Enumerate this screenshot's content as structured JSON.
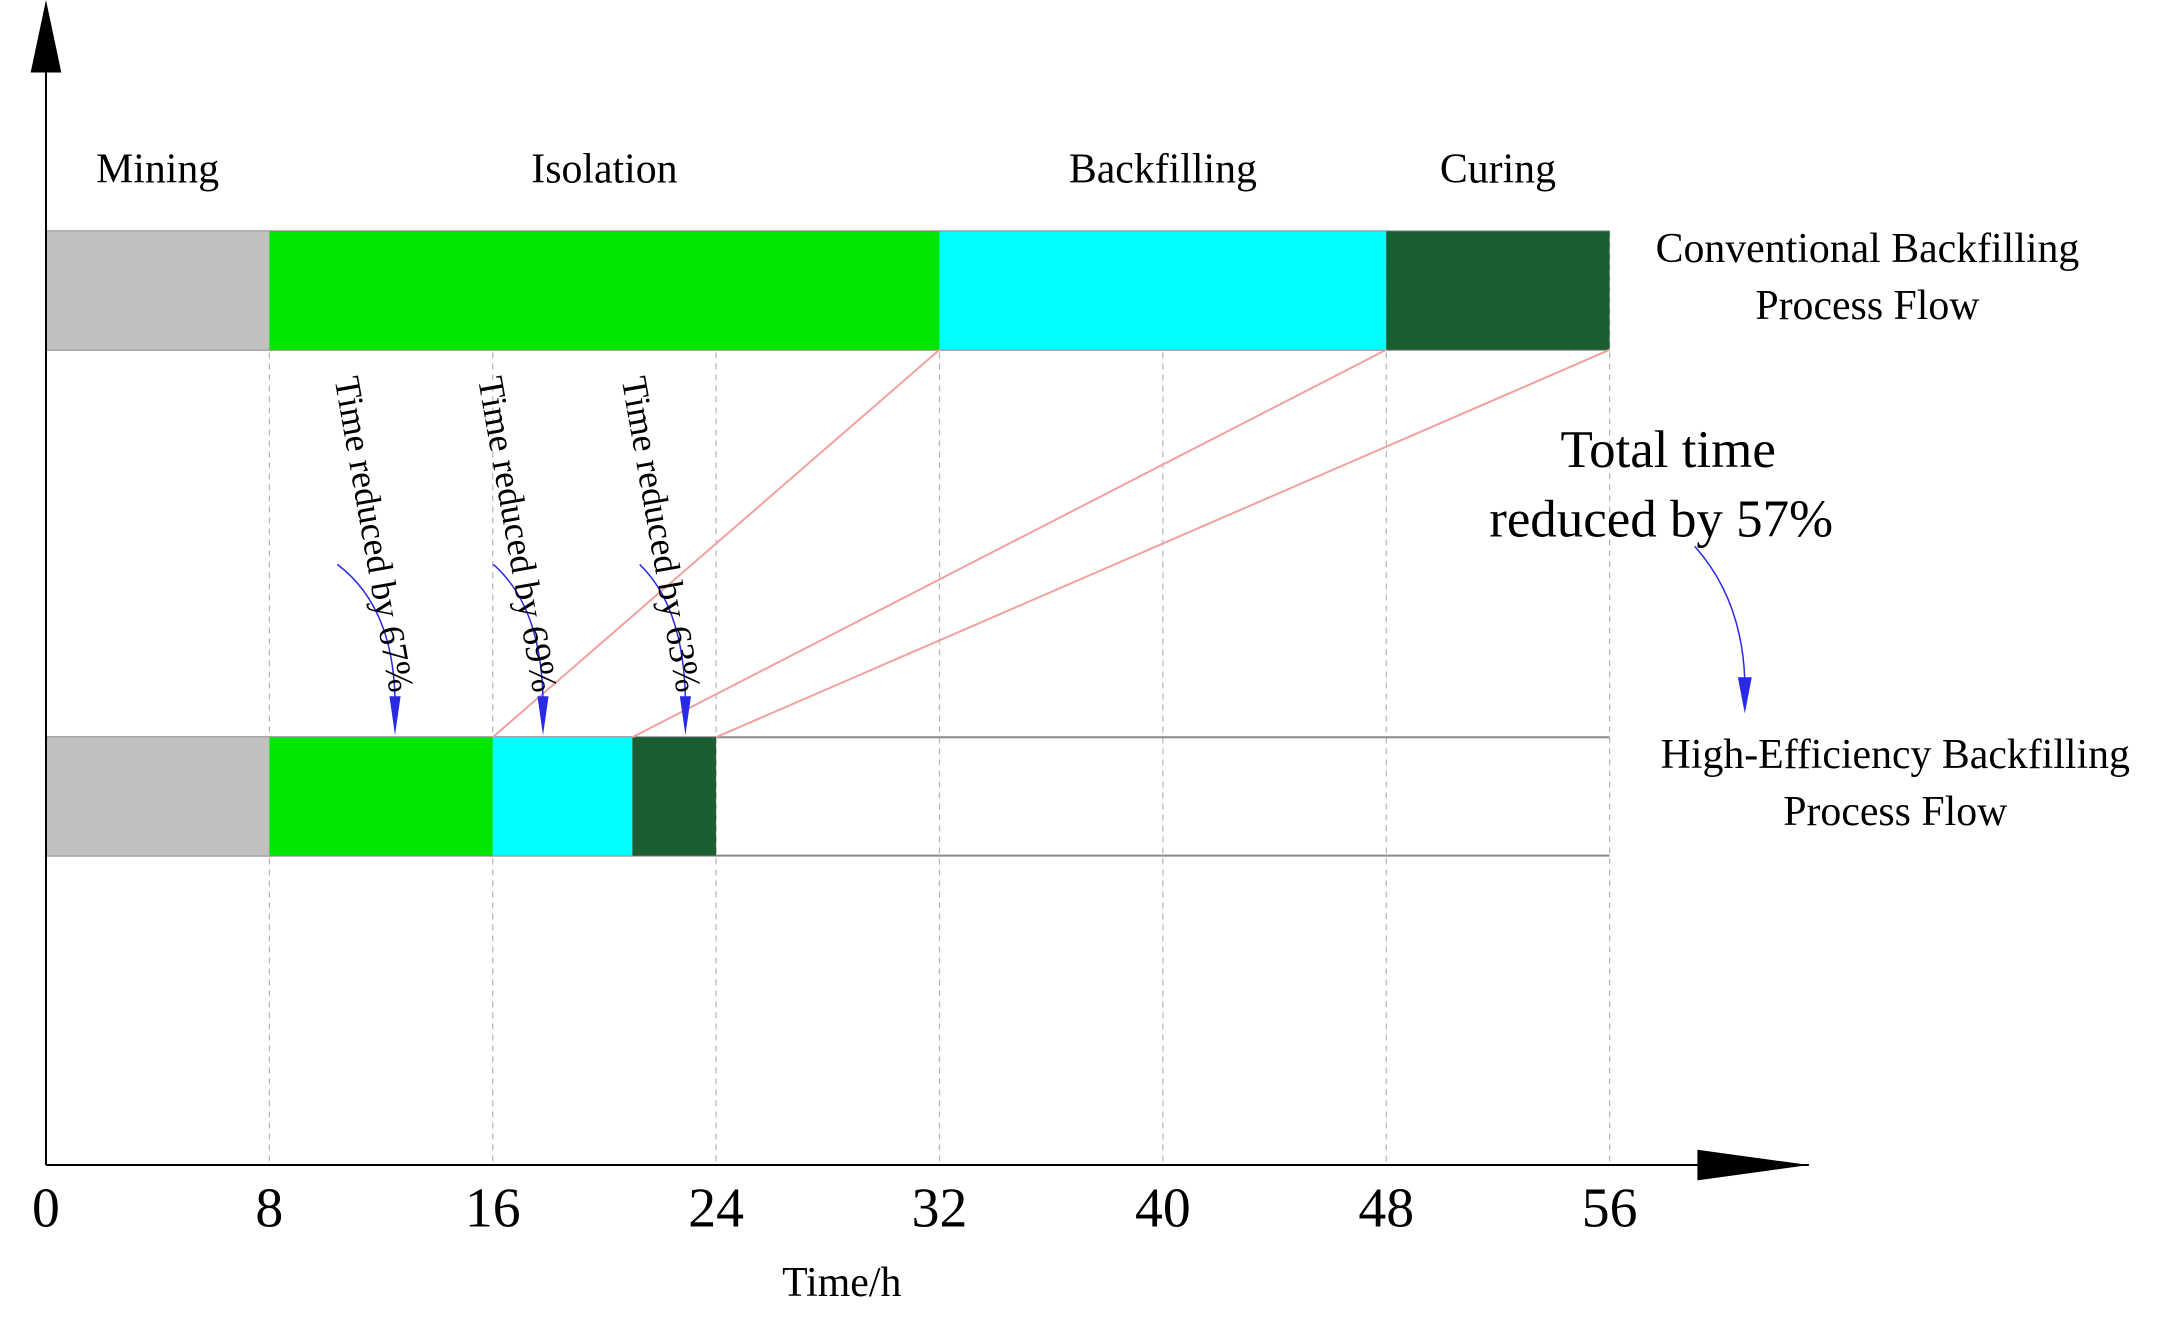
{
  "chart_data": {
    "type": "bar",
    "subtype": "gantt",
    "title": "",
    "xlabel": "Time/h",
    "ylabel": "",
    "xlim": [
      0,
      56
    ],
    "x_ticks": [
      0,
      8,
      16,
      24,
      32,
      40,
      48,
      56
    ],
    "grid": "vertical dashed at each tick",
    "phases": [
      "Mining",
      "Isolation",
      "Backfilling",
      "Curing"
    ],
    "phase_colors": {
      "Mining": "#c0c0c0",
      "Isolation": "#00e600",
      "Backfilling": "#00ffff",
      "Curing": "#1b5e31"
    },
    "series": [
      {
        "name": "Conventional Backfilling Process Flow",
        "name_lines": [
          "Conventional Backfilling",
          "Process Flow"
        ],
        "segments": [
          {
            "phase": "Mining",
            "start": 0,
            "end": 8
          },
          {
            "phase": "Isolation",
            "start": 8,
            "end": 32
          },
          {
            "phase": "Backfilling",
            "start": 32,
            "end": 48
          },
          {
            "phase": "Curing",
            "start": 48,
            "end": 56
          }
        ]
      },
      {
        "name": "High-Efficiency Backfilling Process Flow",
        "name_lines": [
          "High-Efficiency Backfilling",
          "Process Flow"
        ],
        "segments": [
          {
            "phase": "Mining",
            "start": 0,
            "end": 8
          },
          {
            "phase": "Isolation",
            "start": 8,
            "end": 16
          },
          {
            "phase": "Backfilling",
            "start": 16,
            "end": 21
          },
          {
            "phase": "Curing",
            "start": 21,
            "end": 24
          }
        ]
      }
    ],
    "annotations": [
      {
        "text": "Time reduced by 67%",
        "x": 12.5
      },
      {
        "text": "Time reduced by 69%",
        "x": 17.8
      },
      {
        "text": "Time reduced by 63%",
        "x": 22.9
      },
      {
        "text_lines": [
          "Total time",
          "reduced by 57%"
        ],
        "target": "High-Efficiency Backfilling Process Flow"
      }
    ],
    "connector_color": "#f4a0a0",
    "arrow_color": "#2a2ae6"
  }
}
